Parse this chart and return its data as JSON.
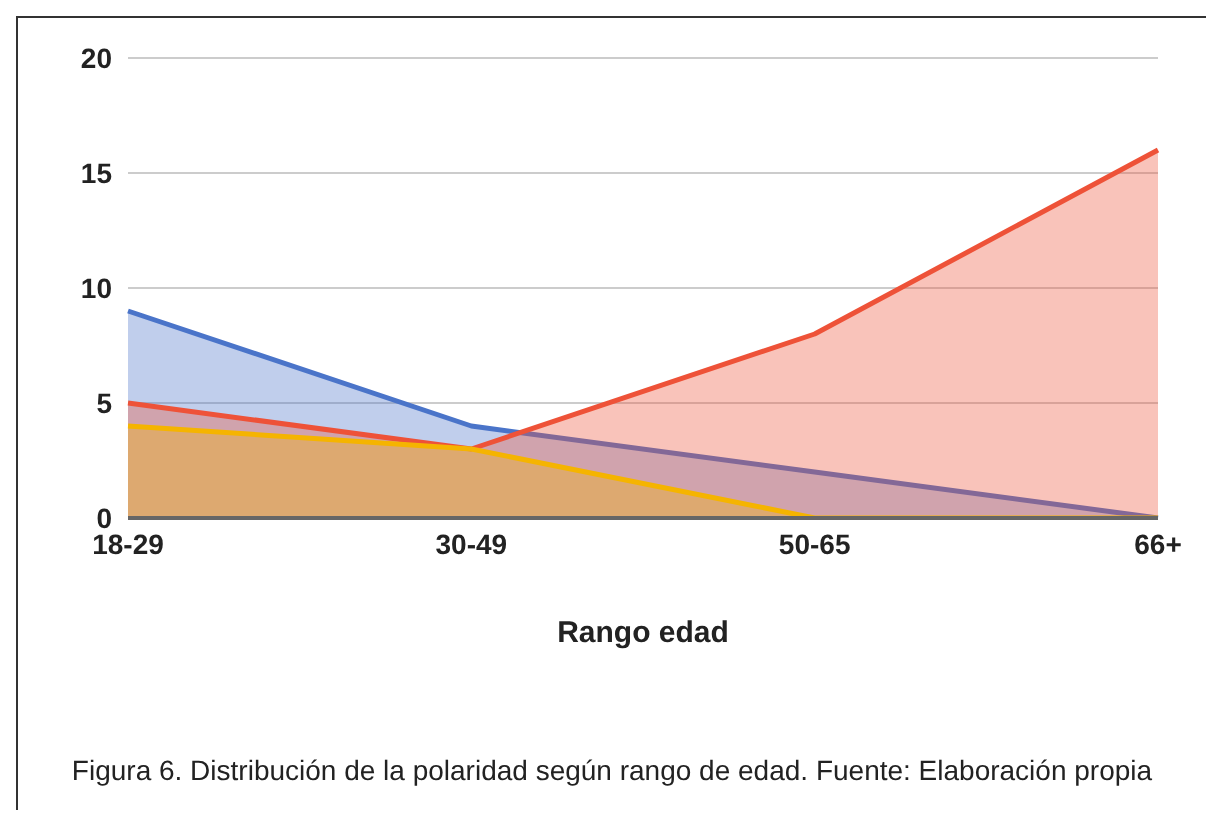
{
  "chart_data": {
    "type": "area",
    "xlabel": "Rango edad",
    "categories": [
      "18-29",
      "30-49",
      "50-65",
      "66+"
    ],
    "series": [
      {
        "color": "#4a74c9",
        "values": [
          9,
          4,
          2,
          0
        ]
      },
      {
        "color": "#ee5238",
        "values": [
          5,
          3,
          8,
          16
        ]
      },
      {
        "color": "#f5b400",
        "values": [
          4,
          3,
          0,
          0
        ]
      }
    ],
    "ylim": [
      0,
      20
    ],
    "yticks": [
      0,
      5,
      10,
      15,
      20
    ],
    "grid": "y",
    "legend": false,
    "annotations": [
      "Figura 6. Distribución de la polaridad según rango de edad.  Fuente: Elaboración propia"
    ]
  }
}
